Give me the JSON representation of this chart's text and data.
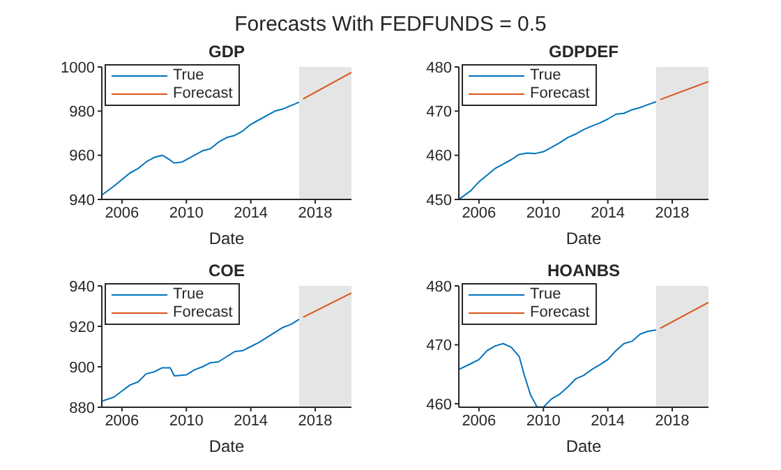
{
  "chart_data": [
    {
      "type": "line",
      "title": "GDP",
      "xlabel": "Date",
      "annotations": [
        "Forecasts With FEDFUNDS = 0.5"
      ],
      "xlim": [
        2004.75,
        2020.25
      ],
      "xticks": [
        2006,
        2010,
        2014,
        2018
      ],
      "ylim": [
        940,
        1000
      ],
      "yticks": [
        940,
        960,
        980,
        1000
      ],
      "legend": "top left",
      "marker": "none",
      "line_style": "solid",
      "bands": [
        {
          "axis": "x",
          "from": 2017,
          "to": 2020.25,
          "color": "#e5e5e5"
        }
      ],
      "series": [
        {
          "name": "True",
          "color": "#0072bd",
          "x": [
            2004.75,
            2005.5,
            2006,
            2006.5,
            2007,
            2007.5,
            2008,
            2008.5,
            2008.75,
            2009.25,
            2009.75,
            2010.5,
            2011,
            2011.5,
            2012,
            2012.5,
            2013,
            2013.5,
            2014,
            2014.5,
            2015,
            2015.5,
            2016,
            2016.5,
            2017
          ],
          "values": [
            942,
            946,
            949,
            952,
            954,
            957,
            959,
            960,
            959,
            956.5,
            957,
            960,
            962,
            963,
            966,
            968,
            969,
            971,
            974,
            976,
            978,
            980,
            981,
            982.5,
            984
          ]
        },
        {
          "name": "Forecast",
          "color": "#d95319",
          "x": [
            2017.25,
            2020.25
          ],
          "values": [
            985.5,
            997.5
          ]
        }
      ]
    },
    {
      "type": "line",
      "title": "GDPDEF",
      "xlabel": "Date",
      "xlim": [
        2004.75,
        2020.25
      ],
      "xticks": [
        2006,
        2010,
        2014,
        2018
      ],
      "ylim": [
        450,
        480
      ],
      "yticks": [
        450,
        460,
        470,
        480
      ],
      "legend": "top left",
      "marker": "none",
      "line_style": "solid",
      "bands": [
        {
          "axis": "x",
          "from": 2017,
          "to": 2020.25,
          "color": "#e5e5e5"
        }
      ],
      "series": [
        {
          "name": "True",
          "color": "#0072bd",
          "x": [
            2004.75,
            2005.5,
            2006,
            2006.5,
            2007,
            2007.5,
            2008,
            2008.5,
            2009,
            2009.5,
            2010,
            2010.5,
            2011,
            2011.5,
            2012,
            2012.5,
            2013,
            2013.5,
            2014,
            2014.5,
            2015,
            2015.5,
            2016,
            2016.5,
            2017
          ],
          "values": [
            450,
            452,
            454,
            455.5,
            457,
            458,
            459,
            460.2,
            460.5,
            460.4,
            460.8,
            461.8,
            462.8,
            464,
            464.8,
            465.8,
            466.6,
            467.3,
            468.2,
            469.3,
            469.5,
            470.3,
            470.8,
            471.5,
            472.1
          ]
        },
        {
          "name": "Forecast",
          "color": "#d95319",
          "x": [
            2017.25,
            2020.25
          ],
          "values": [
            472.6,
            476.7
          ]
        }
      ]
    },
    {
      "type": "line",
      "title": "COE",
      "xlabel": "Date",
      "xlim": [
        2004.75,
        2020.25
      ],
      "xticks": [
        2006,
        2010,
        2014,
        2018
      ],
      "ylim": [
        880,
        940
      ],
      "yticks": [
        880,
        900,
        920,
        940
      ],
      "legend": "top left",
      "marker": "none",
      "line_style": "solid",
      "bands": [
        {
          "axis": "x",
          "from": 2017,
          "to": 2020.25,
          "color": "#e5e5e5"
        }
      ],
      "series": [
        {
          "name": "True",
          "color": "#0072bd",
          "x": [
            2004.75,
            2005.5,
            2006,
            2006.5,
            2007,
            2007.5,
            2008,
            2008.5,
            2009,
            2009.25,
            2010,
            2010.5,
            2011,
            2011.5,
            2012,
            2012.5,
            2013,
            2013.5,
            2014,
            2014.5,
            2015,
            2015.5,
            2016,
            2016.5,
            2017
          ],
          "values": [
            883,
            885,
            888,
            891,
            892.5,
            896.5,
            897.5,
            899.5,
            899.5,
            895.5,
            896,
            898.5,
            900,
            902,
            902.5,
            905,
            907.5,
            908,
            910,
            912,
            914.5,
            917,
            919.5,
            921,
            923.5
          ]
        },
        {
          "name": "Forecast",
          "color": "#d95319",
          "x": [
            2017.25,
            2020.25
          ],
          "values": [
            924.5,
            936.5
          ]
        }
      ]
    },
    {
      "type": "line",
      "title": "HOANBS",
      "xlabel": "Date",
      "xlim": [
        2004.75,
        2020.25
      ],
      "xticks": [
        2006,
        2010,
        2014,
        2018
      ],
      "ylim": [
        459.4,
        480
      ],
      "yticks": [
        460,
        470,
        480
      ],
      "legend": "top left",
      "marker": "none",
      "line_style": "solid",
      "bands": [
        {
          "axis": "x",
          "from": 2017,
          "to": 2020.25,
          "color": "#e5e5e5"
        }
      ],
      "series": [
        {
          "name": "True",
          "color": "#0072bd",
          "x": [
            2004.75,
            2005.5,
            2006,
            2006.5,
            2007,
            2007.5,
            2008,
            2008.5,
            2008.8,
            2009.2,
            2009.6,
            2010,
            2010.5,
            2011,
            2011.5,
            2012,
            2012.5,
            2013,
            2013.5,
            2014,
            2014.5,
            2015,
            2015.5,
            2016,
            2016.5,
            2017
          ],
          "values": [
            465.8,
            466.8,
            467.5,
            469,
            469.8,
            470.2,
            469.6,
            468,
            465,
            461.5,
            459.5,
            459.4,
            460.8,
            461.6,
            462.8,
            464.2,
            464.8,
            465.8,
            466.6,
            467.5,
            469,
            470.2,
            470.6,
            471.8,
            472.3,
            472.5
          ]
        },
        {
          "name": "Forecast",
          "color": "#d95319",
          "x": [
            2017.25,
            2020.25
          ],
          "values": [
            472.8,
            477.2
          ]
        }
      ]
    }
  ]
}
